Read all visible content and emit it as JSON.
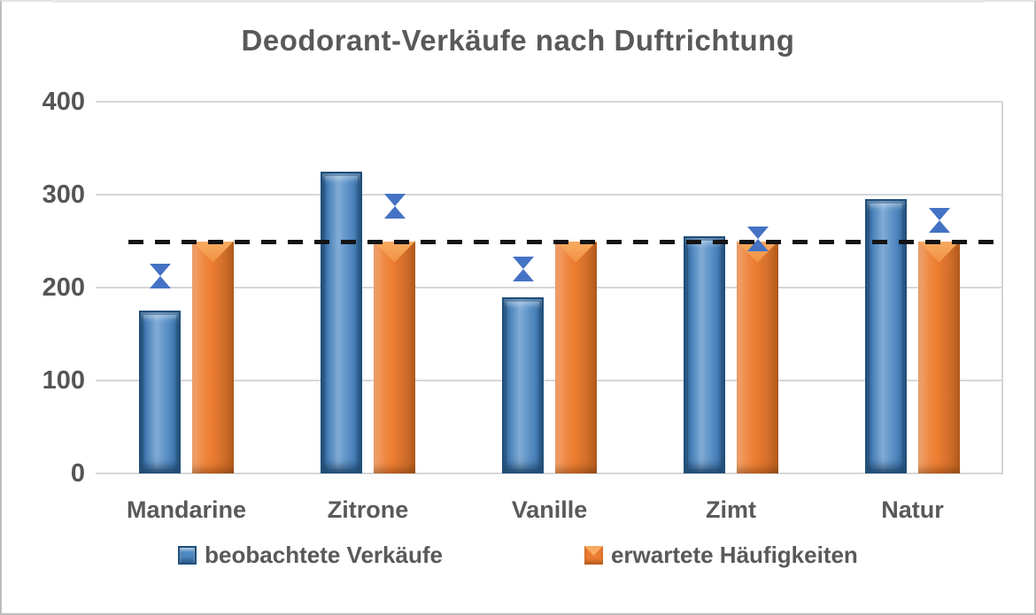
{
  "title": "Deodorant-Verkäufe nach Duftrichtung",
  "colors": {
    "observed_bar": "#4c88c4",
    "observed_border": "#1f4e79",
    "expected_bar": "#ed7d31",
    "arrow": "#4472c4",
    "gridline": "#d6d6d6",
    "reference_line": "#141414",
    "text": "#595959"
  },
  "chart_data": {
    "type": "bar",
    "title": "Deodorant-Verkäufe nach Duftrichtung",
    "categories": [
      "Mandarine",
      "Zitrone",
      "Vanille",
      "Zimt",
      "Natur"
    ],
    "series": [
      {
        "name": "beobachtete Verkäufe",
        "color": "#4c88c4",
        "values": [
          175,
          325,
          190,
          255,
          295
        ]
      },
      {
        "name": "erwartete Häufigkeiten",
        "color": "#ed7d31",
        "values": [
          250,
          250,
          250,
          250,
          250
        ]
      }
    ],
    "reference_line": {
      "value": 250,
      "style": "dashed",
      "color": "#141414"
    },
    "difference_arrows": [
      {
        "category": "Mandarine",
        "anchor": "observed",
        "from": 250,
        "to": 175
      },
      {
        "category": "Zitrone",
        "anchor": "expected",
        "from": 325,
        "to": 250
      },
      {
        "category": "Vanille",
        "anchor": "observed",
        "from": 250,
        "to": 190
      },
      {
        "category": "Zimt",
        "anchor": "expected",
        "from": 255,
        "to": 250
      },
      {
        "category": "Natur",
        "anchor": "expected",
        "from": 295,
        "to": 250
      }
    ],
    "xlabel": "",
    "ylabel": "",
    "ylim": [
      0,
      400
    ],
    "yticks": [
      0,
      100,
      200,
      300,
      400
    ],
    "grid": true,
    "legend_position": "bottom"
  }
}
